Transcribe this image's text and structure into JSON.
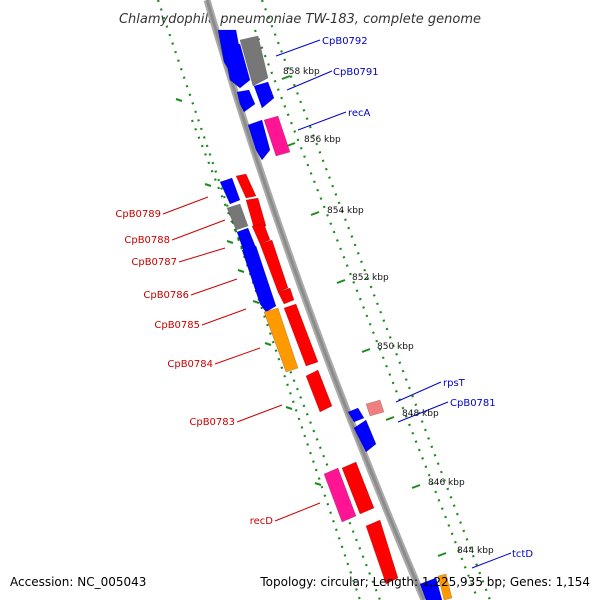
{
  "title": "Chlamydophila pneumoniae TW-183, complete genome",
  "footer": {
    "accession": "Accession: NC_005043",
    "topology": "Topology: circular; Length: 1,225,935 bp; Genes: 1,154"
  },
  "colors": {
    "backbone": "#8c8c8c",
    "ticks": "#1a8c1a",
    "forward_labels": "#0000cc",
    "reverse_labels": "#cc0000",
    "blue": "#0000ff",
    "red": "#ff0000",
    "gray": "#777777",
    "magenta": "#ff1493",
    "orange": "#ff9900",
    "pink": "#f08080"
  },
  "scale_labels": [
    "858 kbp",
    "856 kbp",
    "854 kbp",
    "852 kbp",
    "850 kbp",
    "848 kbp",
    "846 kbp",
    "844 kbp"
  ],
  "gene_labels": {
    "forward": [
      "CpB0792",
      "CpB0791",
      "recA",
      "rpsT",
      "CpB0781",
      "tctD"
    ],
    "reverse": [
      "CpB0789",
      "CpB0788",
      "CpB0787",
      "CpB0786",
      "CpB0785",
      "CpB0784",
      "CpB0783",
      "recD"
    ]
  }
}
